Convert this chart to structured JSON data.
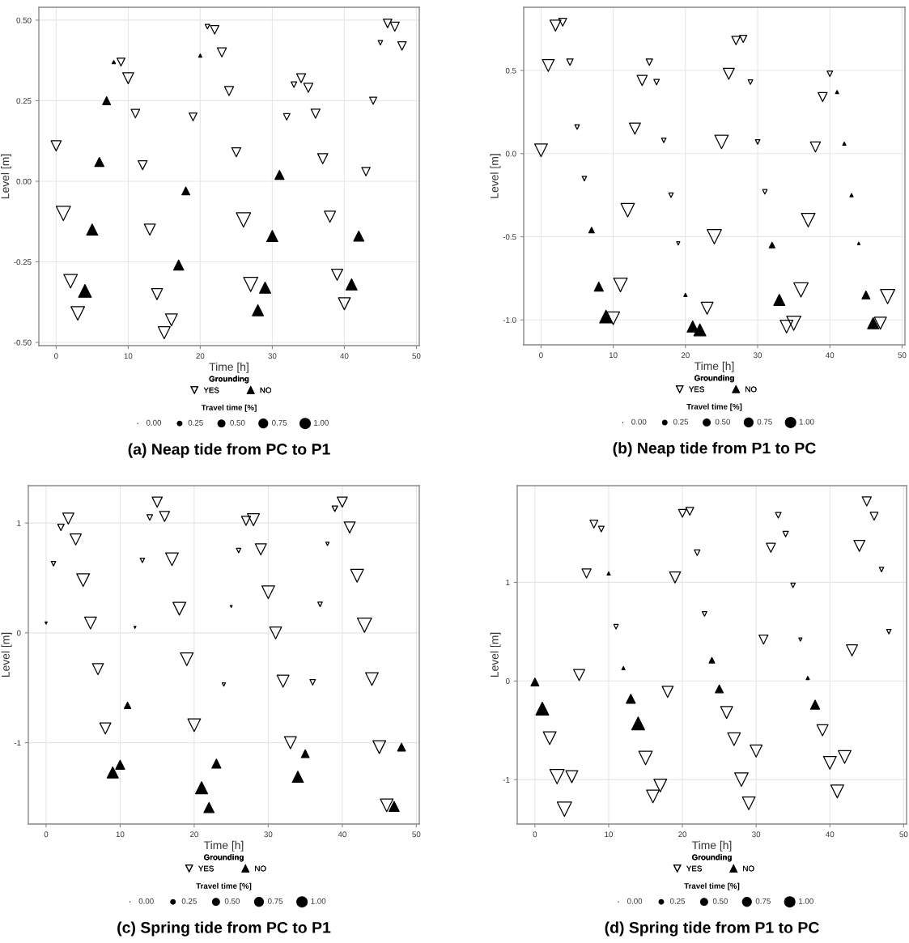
{
  "chart_data": [
    {
      "type": "bubble",
      "title": "(a) Neap tide from PC to P1",
      "xlabel": "Time [h]",
      "ylabel": "Level [m]",
      "xlim": [
        -2.4,
        50.4
      ],
      "xticks": [
        0,
        10,
        20,
        30,
        40,
        50
      ],
      "ylim": [
        -0.51,
        0.54
      ],
      "yticks": [
        {
          "value": -0.5,
          "label": "-0.50"
        },
        {
          "value": -0.25,
          "label": "-0.25"
        },
        {
          "value": 0,
          "label": "0.00"
        },
        {
          "value": 0.25,
          "label": "0.25"
        },
        {
          "value": 0.5,
          "label": "0.50"
        }
      ],
      "grid": true,
      "legend": "bottom",
      "legend_title": "Grounding",
      "annotations": [
        "Travel time [%]"
      ],
      "size_legend": [
        {
          "value": 0,
          "label": "0.00"
        },
        {
          "value": 0.25,
          "label": "0.25"
        },
        {
          "value": 0.5,
          "label": "0.50"
        },
        {
          "value": 0.75,
          "label": "0.75"
        },
        {
          "value": 1,
          "label": "1.00"
        }
      ],
      "series": [
        {
          "name": "YES",
          "color": "#000000",
          "marker": "triangle_down",
          "x": [
            0,
            1,
            2,
            3,
            9,
            10,
            11,
            12,
            13,
            14,
            15,
            16,
            19,
            21,
            22,
            23,
            24,
            25,
            26,
            27,
            32,
            33,
            34,
            35,
            36,
            37,
            38,
            39,
            40,
            43,
            44,
            45,
            46,
            47,
            48
          ],
          "values": [
            0.11,
            -0.1,
            -0.31,
            -0.41,
            0.37,
            0.32,
            0.21,
            0.05,
            -0.15,
            -0.35,
            -0.47,
            -0.43,
            0.2,
            0.48,
            0.47,
            0.4,
            0.28,
            0.09,
            -0.12,
            -0.32,
            0.2,
            0.3,
            0.32,
            0.29,
            0.21,
            0.07,
            -0.11,
            -0.29,
            -0.38,
            0.03,
            0.25,
            0.43,
            0.49,
            0.48,
            0.42
          ],
          "sizes": [
            0.5,
            1.0,
            0.9,
            0.9,
            0.3,
            0.6,
            0.35,
            0.4,
            0.6,
            0.6,
            0.7,
            0.7,
            0.3,
            0.1,
            0.35,
            0.4,
            0.4,
            0.4,
            1.0,
            1.0,
            0.2,
            0.15,
            0.4,
            0.4,
            0.4,
            0.5,
            0.6,
            0.6,
            0.7,
            0.35,
            0.25,
            0.1,
            0.35,
            0.4,
            0.35
          ]
        },
        {
          "name": "NO",
          "color": "#000000",
          "marker": "triangle",
          "x": [
            4,
            5,
            6,
            7,
            8,
            17,
            18,
            20,
            28,
            29,
            30,
            31,
            41,
            42
          ],
          "values": [
            -0.34,
            -0.15,
            0.06,
            0.25,
            0.37,
            -0.26,
            -0.03,
            0.39,
            -0.4,
            -0.33,
            -0.17,
            0.02,
            -0.32,
            -0.17
          ],
          "sizes": [
            0.8,
            0.6,
            0.4,
            0.3,
            0.05,
            0.5,
            0.3,
            0.05,
            0.6,
            0.6,
            0.6,
            0.4,
            0.6,
            0.5
          ]
        }
      ]
    },
    {
      "type": "bubble",
      "title": "(b) Neap tide from P1 to PC",
      "xlabel": "Time [h]",
      "ylabel": "Level [m]",
      "xlim": [
        -2.4,
        50.4
      ],
      "xticks": [
        0,
        10,
        20,
        30,
        40,
        50
      ],
      "ylim": [
        -1.15,
        0.88
      ],
      "yticks": [
        {
          "value": -1,
          "label": "-1.0"
        },
        {
          "value": -0.5,
          "label": "-0.5"
        },
        {
          "value": 0,
          "label": "0.0"
        },
        {
          "value": 0.5,
          "label": "0.5"
        }
      ],
      "grid": true,
      "legend": "bottom",
      "legend_title": "Grounding",
      "annotations": [
        "Travel time [%]"
      ],
      "size_legend": [
        {
          "value": 0,
          "label": "0.00"
        },
        {
          "value": 0.25,
          "label": "0.25"
        },
        {
          "value": 0.5,
          "label": "0.50"
        },
        {
          "value": 0.75,
          "label": "0.75"
        },
        {
          "value": 1,
          "label": "1.00"
        }
      ],
      "series": [
        {
          "name": "YES",
          "color": "#000000",
          "marker": "triangle_down",
          "x": [
            0,
            1,
            2,
            3,
            4,
            5,
            6,
            10,
            11,
            12,
            13,
            14,
            15,
            16,
            17,
            18,
            19,
            23,
            24,
            25,
            26,
            27,
            28,
            29,
            30,
            31,
            34,
            35,
            36,
            37,
            38,
            39,
            40,
            47,
            48
          ],
          "values": [
            0.02,
            0.53,
            0.77,
            0.79,
            0.55,
            0.16,
            -0.15,
            -0.99,
            -0.79,
            -0.34,
            0.15,
            0.44,
            0.55,
            0.43,
            0.08,
            -0.25,
            -0.54,
            -0.93,
            -0.5,
            0.07,
            0.48,
            0.68,
            0.69,
            0.43,
            0.07,
            -0.23,
            -1.04,
            -1.02,
            -0.82,
            -0.4,
            0.04,
            0.34,
            0.48,
            -1.02,
            -0.86
          ],
          "sizes": [
            0.8,
            0.7,
            0.6,
            0.3,
            0.2,
            0.1,
            0.1,
            0.8,
            0.9,
            0.9,
            0.6,
            0.5,
            0.2,
            0.15,
            0.1,
            0.1,
            0.05,
            0.7,
            1.0,
            0.9,
            0.6,
            0.35,
            0.25,
            0.1,
            0.1,
            0.1,
            0.8,
            1.0,
            1.0,
            0.9,
            0.5,
            0.4,
            0.15,
            0.7,
            1.0
          ]
        },
        {
          "name": "NO",
          "color": "#000000",
          "marker": "triangle",
          "x": [
            7,
            8,
            9,
            20,
            21,
            22,
            32,
            33,
            41,
            42,
            43,
            44,
            45,
            46
          ],
          "values": [
            -0.46,
            -0.8,
            -0.98,
            -0.85,
            -1.04,
            -1.06,
            -0.55,
            -0.88,
            0.37,
            0.06,
            -0.25,
            -0.54,
            -0.85,
            -1.02
          ],
          "sizes": [
            0.15,
            0.4,
            0.8,
            0.05,
            0.6,
            0.7,
            0.15,
            0.6,
            0.05,
            0.05,
            0.05,
            0.03,
            0.3,
            0.6
          ]
        }
      ]
    },
    {
      "type": "bubble",
      "title": "(c) Spring tide from PC to P1",
      "xlabel": "Time [h]",
      "ylabel": "Level [m]",
      "xlim": [
        -2.4,
        50.4
      ],
      "xticks": [
        0,
        10,
        20,
        30,
        40,
        50
      ],
      "ylim": [
        -1.74,
        1.34
      ],
      "yticks": [
        -1,
        0,
        1
      ],
      "grid": true,
      "legend": "bottom",
      "legend_title": "Grounding",
      "annotations": [
        "Travel time [%]"
      ],
      "size_legend": [
        {
          "value": 0,
          "label": "0.00"
        },
        {
          "value": 0.25,
          "label": "0.25"
        },
        {
          "value": 0.5,
          "label": "0.50"
        },
        {
          "value": 0.75,
          "label": "0.75"
        },
        {
          "value": 1,
          "label": "1.00"
        }
      ],
      "series": [
        {
          "name": "YES",
          "color": "#000000",
          "marker": "triangle_down",
          "x": [
            0,
            1,
            2,
            3,
            4,
            5,
            6,
            7,
            8,
            12,
            13,
            14,
            15,
            16,
            17,
            18,
            19,
            20,
            24,
            25,
            26,
            27,
            28,
            29,
            30,
            31,
            32,
            33,
            36,
            37,
            38,
            39,
            40,
            41,
            42,
            43,
            44,
            45,
            46
          ],
          "values": [
            0.09,
            0.63,
            0.96,
            1.04,
            0.85,
            0.48,
            0.09,
            -0.33,
            -0.87,
            0.05,
            0.66,
            1.05,
            1.19,
            1.06,
            0.67,
            0.22,
            -0.24,
            -0.84,
            -0.47,
            0.24,
            0.75,
            1.02,
            1.03,
            0.76,
            0.37,
            0.0,
            -0.44,
            -1.0,
            -0.45,
            0.26,
            0.81,
            1.13,
            1.19,
            0.96,
            0.52,
            0.07,
            -0.42,
            -1.04,
            -1.57
          ],
          "sizes": [
            0.02,
            0.1,
            0.2,
            0.6,
            0.6,
            0.8,
            0.7,
            0.6,
            0.6,
            0.02,
            0.1,
            0.15,
            0.5,
            0.5,
            0.8,
            0.8,
            0.8,
            0.8,
            0.05,
            0.02,
            0.1,
            0.4,
            0.7,
            0.6,
            0.8,
            0.7,
            0.7,
            0.7,
            0.15,
            0.1,
            0.05,
            0.15,
            0.5,
            0.6,
            0.8,
            1.0,
            0.8,
            0.8,
            0.8
          ]
        },
        {
          "name": "NO",
          "color": "#000000",
          "marker": "triangle",
          "x": [
            9,
            10,
            11,
            21,
            22,
            23,
            34,
            35,
            47,
            48
          ],
          "values": [
            -1.27,
            -1.2,
            -0.66,
            -1.41,
            -1.59,
            -1.19,
            -1.31,
            -1.1,
            -1.58,
            -1.04
          ],
          "sizes": [
            0.6,
            0.4,
            0.2,
            0.7,
            0.5,
            0.4,
            0.6,
            0.3,
            0.5,
            0.3
          ]
        }
      ]
    },
    {
      "type": "bubble",
      "title": "(d) Spring tide from P1 to PC",
      "xlabel": "Time [h]",
      "ylabel": "Level [m]",
      "xlim": [
        -2.4,
        50.4
      ],
      "xticks": [
        0,
        10,
        20,
        30,
        40,
        50
      ],
      "ylim": [
        -1.45,
        1.98
      ],
      "yticks": [
        -1,
        0,
        1
      ],
      "grid": true,
      "legend": "bottom",
      "legend_title": "Grounding",
      "annotations": [
        "Travel time [%]"
      ],
      "size_legend": [
        {
          "value": 0,
          "label": "0.00"
        },
        {
          "value": 0.25,
          "label": "0.25"
        },
        {
          "value": 0.5,
          "label": "0.50"
        },
        {
          "value": 0.75,
          "label": "0.75"
        },
        {
          "value": 1,
          "label": "1.00"
        }
      ],
      "series": [
        {
          "name": "YES",
          "color": "#000000",
          "marker": "triangle_down",
          "x": [
            2,
            3,
            4,
            5,
            6,
            7,
            8,
            9,
            11,
            15,
            16,
            17,
            18,
            19,
            20,
            21,
            22,
            23,
            26,
            27,
            28,
            29,
            30,
            31,
            32,
            33,
            34,
            35,
            36,
            39,
            40,
            41,
            42,
            43,
            44,
            45,
            46,
            47,
            48
          ],
          "values": [
            -0.58,
            -0.97,
            -1.3,
            -0.97,
            0.06,
            1.09,
            1.59,
            1.54,
            0.55,
            -0.78,
            -1.17,
            -1.06,
            -0.11,
            1.05,
            1.7,
            1.72,
            1.3,
            0.68,
            -0.32,
            -0.59,
            -1.0,
            -1.24,
            -0.71,
            0.42,
            1.35,
            1.68,
            1.49,
            0.97,
            0.42,
            -0.5,
            -0.83,
            -1.12,
            -0.77,
            0.31,
            1.37,
            1.82,
            1.67,
            1.13,
            0.5
          ],
          "sizes": [
            0.8,
            1.0,
            1.0,
            0.7,
            0.6,
            0.4,
            0.3,
            0.15,
            0.1,
            0.9,
            0.8,
            0.8,
            0.6,
            0.6,
            0.3,
            0.3,
            0.15,
            0.1,
            0.7,
            0.8,
            0.9,
            0.8,
            0.7,
            0.4,
            0.4,
            0.15,
            0.15,
            0.1,
            0.05,
            0.6,
            0.8,
            0.8,
            0.8,
            0.6,
            0.6,
            0.4,
            0.3,
            0.1,
            0.1
          ]
        },
        {
          "name": "NO",
          "color": "#000000",
          "marker": "triangle",
          "x": [
            0,
            1,
            10,
            12,
            13,
            14,
            24,
            25,
            37,
            38
          ],
          "values": [
            -0.01,
            -0.28,
            1.09,
            0.13,
            -0.18,
            -0.43,
            0.21,
            -0.08,
            0.03,
            -0.24
          ],
          "sizes": [
            0.3,
            0.8,
            0.05,
            0.05,
            0.4,
            0.8,
            0.15,
            0.3,
            0.05,
            0.4
          ]
        }
      ]
    }
  ]
}
